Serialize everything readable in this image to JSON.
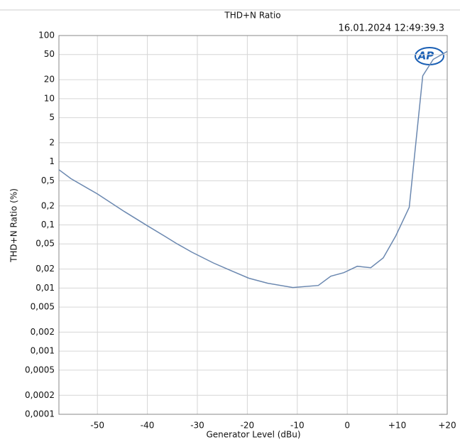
{
  "chart_data": {
    "type": "line",
    "title": "THD+N Ratio",
    "timestamp": "16.01.2024 12:49:39.3",
    "logo": "AP",
    "x_label": "Generator Level (dBu)",
    "y_label": "THD+N Ratio (%)",
    "y_scale": "log",
    "grid": true,
    "xlim": [
      -57.7,
      20
    ],
    "ylim": [
      0.0001,
      100
    ],
    "xticks": [
      -50,
      -40,
      -30,
      -20,
      -10,
      0,
      {
        "value": 10,
        "label": "+10"
      },
      {
        "value": 20,
        "label": "+20"
      }
    ],
    "yticks": [
      100,
      50,
      20,
      10,
      5,
      2,
      1,
      {
        "value": 0.5,
        "label": "0,5"
      },
      {
        "value": 0.2,
        "label": "0,2"
      },
      {
        "value": 0.1,
        "label": "0,1"
      },
      {
        "value": 0.05,
        "label": "0,05"
      },
      {
        "value": 0.02,
        "label": "0,02"
      },
      {
        "value": 0.01,
        "label": "0,01"
      },
      {
        "value": 0.005,
        "label": "0,005"
      },
      {
        "value": 0.002,
        "label": "0,002"
      },
      {
        "value": 0.001,
        "label": "0,001"
      },
      {
        "value": 0.0005,
        "label": "0,0005"
      },
      {
        "value": 0.0002,
        "label": "0,0002"
      },
      {
        "value": 0.0001,
        "label": "0,0001"
      }
    ],
    "x": [
      -57.7,
      -55.3,
      -50,
      -44.6,
      -40,
      -36.5,
      -34.2,
      -31.1,
      -26.8,
      -24,
      -19.7,
      -15.9,
      -10.9,
      -5.8,
      -3.3,
      -0.7,
      2,
      4.7,
      7.2,
      9.7,
      12.4,
      15.1,
      17.2,
      20
    ],
    "series": [
      {
        "color": "#6b88b0",
        "values": [
          0.75,
          0.54,
          0.31,
          0.163,
          0.097,
          0.066,
          0.051,
          0.037,
          0.025,
          0.02,
          0.0143,
          0.0119,
          0.0102,
          0.011,
          0.0154,
          0.0175,
          0.0221,
          0.021,
          0.03,
          0.067,
          0.19,
          23,
          42,
          56
        ]
      }
    ]
  }
}
